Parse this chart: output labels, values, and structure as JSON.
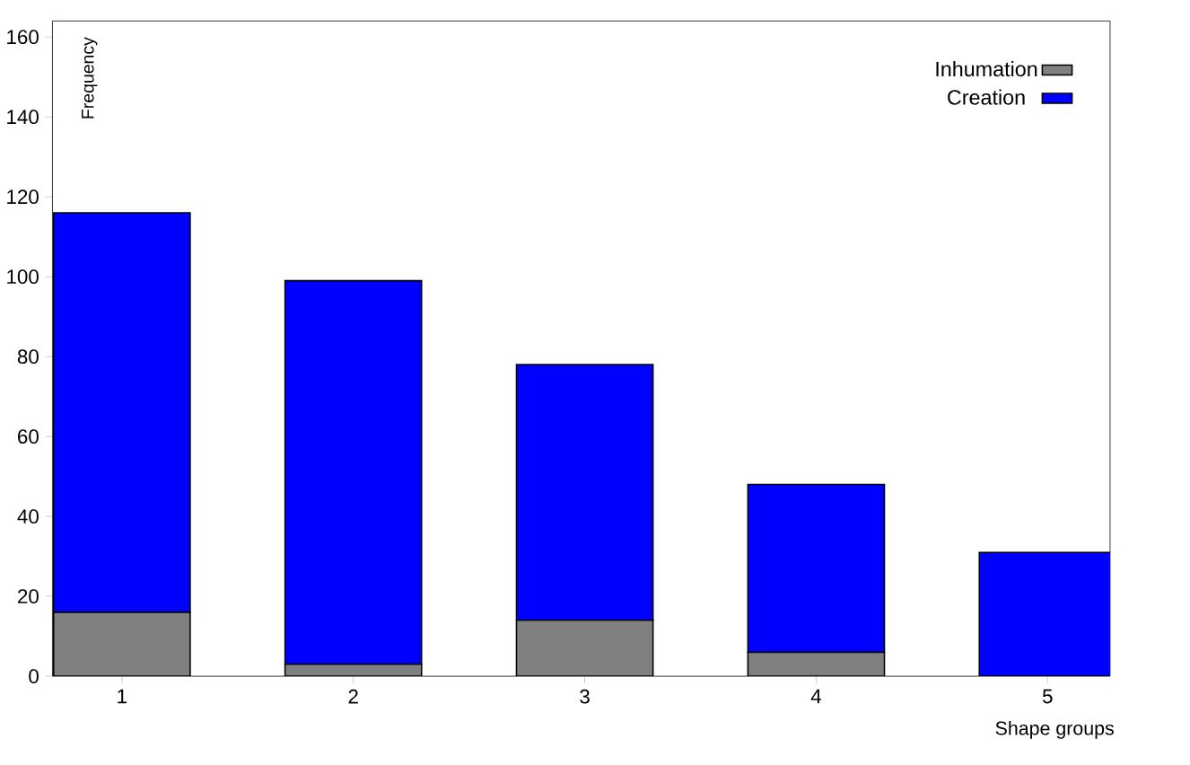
{
  "chart_data": {
    "type": "bar",
    "stacked": true,
    "xlabel": "Shape groups",
    "ylabel": "Frequency",
    "categories": [
      "1",
      "2",
      "3",
      "4",
      "5"
    ],
    "series": [
      {
        "name": "Inhumation",
        "color": "#808080",
        "values": [
          16,
          3,
          14,
          6,
          0
        ]
      },
      {
        "name": "Creation",
        "color": "#0000ff",
        "values": [
          100,
          96,
          64,
          42,
          31
        ]
      }
    ],
    "ylim": [
      0,
      164
    ],
    "yticks": [
      0,
      20,
      40,
      60,
      80,
      100,
      120,
      140,
      160
    ],
    "legend": "top right"
  }
}
